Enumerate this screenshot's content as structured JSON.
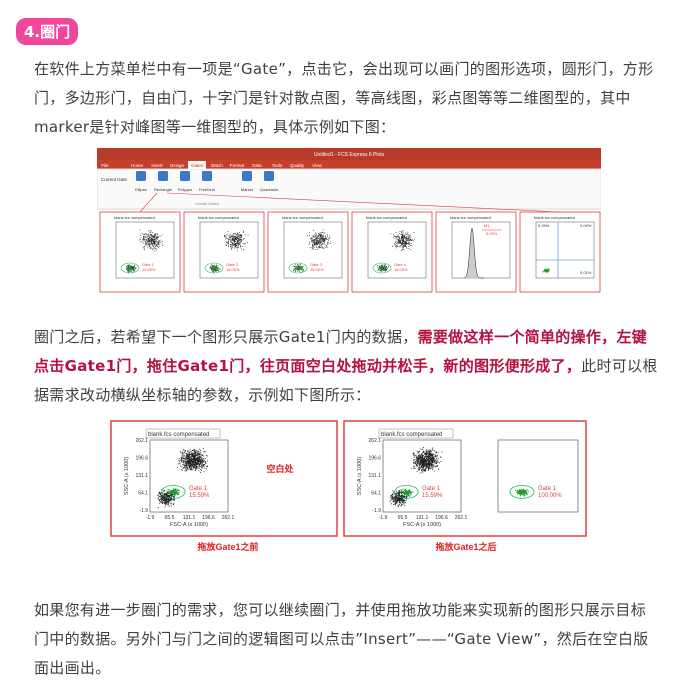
{
  "header": {
    "badge": "4.圈门"
  },
  "paragraphs": [
    {
      "text": "在软件上方菜单栏中有一项是“Gate”，点击它，会出现可以画门的图形选项，圆形门，方形门，多边形门，自由门，十字门是针对散点图，等高线图，彩点图等等二维图型的，其中marker是针对峰图等一维图型的，具体示例如下图："
    },
    {
      "text_start": "圈门之后，若希望下一个图形只展示Gate1门内的数据，",
      "emphasis": "需要做这样一个简单的操作，左键点击Gate1门，拖住Gate1门，往页面空白处拖动并松手，新的图形便形成了，",
      "text_end": "此时可以根据需求改动横纵坐标轴的参数，示例如下图所示："
    },
    {
      "text": "如果您有进一步圈门的需求，您可以继续圈门，并使用拖放功能来实现新的图形只展示目标门中的数据。另外门与门之间的逻辑图可以点击”Insert”——“Gate View”，然后在空白版面出画出。"
    }
  ],
  "figure1": {
    "app_title": "Untitled1 - FCS Express 6 Plots",
    "tabs": [
      "File",
      "Home",
      "Insert",
      "Design",
      "Gates",
      "Batch",
      "Format",
      "Data",
      "Tools",
      "Quality",
      "View"
    ],
    "current_gate": "Current Gate",
    "tools": [
      "Ellipse",
      "Rectangle",
      "Polygon",
      "Freeform",
      "Marker",
      "Quadrants"
    ],
    "group": "Create Gates",
    "panels": [
      {
        "title": "blank.fcs compensated",
        "gate": "Gate 1",
        "pct": "15.59%"
      },
      {
        "title": "blank.fcs compensated",
        "gate": "Gate 2",
        "pct": "16.00%"
      },
      {
        "title": "blank.fcs compensated",
        "gate": "Gate 3",
        "pct": "15.92%"
      },
      {
        "title": "blank.fcs compensated",
        "gate": "Gate 4",
        "pct": "16.00%"
      },
      {
        "title": "blank.fcs compensated",
        "gate": "M1",
        "pct": "0.09%"
      },
      {
        "title": "blank.fcs compensated",
        "quads": [
          "0.09%",
          "0.04%",
          "0.01%"
        ]
      }
    ]
  },
  "figure2": {
    "before": {
      "plot": {
        "title": "blank.fcs compensated",
        "ylabel": "SSC-A (x 1000)",
        "xlabel": "FSC-A (x 1000)",
        "yticks": [
          "262.1",
          "196.6",
          "131.1",
          "64.1",
          "-1.9"
        ],
        "xticks": [
          "-1.9",
          "65.5",
          "131.1",
          "196.6",
          "262.1"
        ],
        "gate": "Gate 1",
        "pct": "15.59%"
      },
      "blank_label": "空白处",
      "caption": "拖放Gate1之前"
    },
    "after": {
      "plot": {
        "title": "blank.fcs compensated",
        "ylabel": "SSC-A (x 1000)",
        "xlabel": "FSC-A (x 1000)",
        "yticks": [
          "262.1",
          "196.6",
          "131.1",
          "64.1",
          "-1.9"
        ],
        "xticks": [
          "-1.9",
          "65.5",
          "131.1",
          "196.6",
          "262.1"
        ],
        "gate": "Gate 1",
        "pct": "15.59%"
      },
      "new_plot": {
        "gate": "Gate 1",
        "pct": "100.00%"
      },
      "caption": "拖放Gate1之后"
    }
  }
}
